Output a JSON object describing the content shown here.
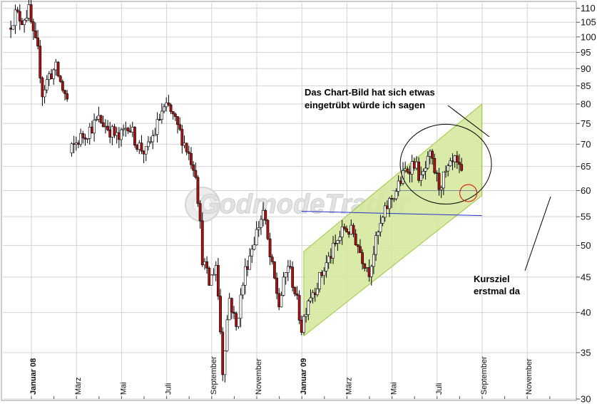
{
  "chart_data": {
    "type": "candlestick",
    "title": "",
    "xlabel": "",
    "ylabel": "",
    "y_scale": "log",
    "ylim": [
      30,
      112
    ],
    "grid": true,
    "watermark": "GodmodeTrader",
    "y_ticks": [
      110,
      105,
      100,
      95,
      90,
      85,
      80,
      75,
      70,
      65,
      60,
      55,
      50,
      45,
      40,
      35,
      30
    ],
    "x_ticks": [
      {
        "label": "Januar 08",
        "bold": true
      },
      {
        "label": "März",
        "bold": false
      },
      {
        "label": "Mai",
        "bold": false
      },
      {
        "label": "Juli",
        "bold": false
      },
      {
        "label": "September",
        "bold": false
      },
      {
        "label": "November",
        "bold": false
      },
      {
        "label": "Januar 09",
        "bold": true
      },
      {
        "label": "März",
        "bold": false
      },
      {
        "label": "Mai",
        "bold": false
      },
      {
        "label": "Juli",
        "bold": false
      },
      {
        "label": "September",
        "bold": false
      },
      {
        "label": "November",
        "bold": false
      }
    ],
    "price_path": [
      {
        "month": 0.0,
        "close": 103
      },
      {
        "month": 0.3,
        "close": 108
      },
      {
        "month": 0.6,
        "close": 106
      },
      {
        "month": 0.9,
        "close": 109
      },
      {
        "month": 1.1,
        "close": 100
      },
      {
        "month": 1.3,
        "close": 95
      },
      {
        "month": 1.5,
        "close": 83
      },
      {
        "month": 1.8,
        "close": 88
      },
      {
        "month": 2.1,
        "close": 90
      },
      {
        "month": 2.4,
        "close": 84
      },
      {
        "month": 2.6,
        "close": 81
      },
      {
        "month": 2.7,
        "close": 68
      },
      {
        "month": 3.1,
        "close": 71
      },
      {
        "month": 3.5,
        "close": 73
      },
      {
        "month": 4.0,
        "close": 76
      },
      {
        "month": 4.4,
        "close": 74
      },
      {
        "month": 4.9,
        "close": 71
      },
      {
        "month": 5.3,
        "close": 75
      },
      {
        "month": 5.7,
        "close": 70
      },
      {
        "month": 6.1,
        "close": 68
      },
      {
        "month": 6.5,
        "close": 73
      },
      {
        "month": 6.8,
        "close": 78
      },
      {
        "month": 7.1,
        "close": 79
      },
      {
        "month": 7.5,
        "close": 74
      },
      {
        "month": 7.9,
        "close": 69
      },
      {
        "month": 8.3,
        "close": 64
      },
      {
        "month": 8.6,
        "close": 48
      },
      {
        "month": 8.9,
        "close": 44
      },
      {
        "month": 9.2,
        "close": 47
      },
      {
        "month": 9.5,
        "close": 33
      },
      {
        "month": 9.8,
        "close": 42
      },
      {
        "month": 10.1,
        "close": 38
      },
      {
        "month": 10.5,
        "close": 46
      },
      {
        "month": 10.9,
        "close": 51
      },
      {
        "month": 11.3,
        "close": 56
      },
      {
        "month": 11.6,
        "close": 48
      },
      {
        "month": 12.0,
        "close": 41
      },
      {
        "month": 12.4,
        "close": 47
      },
      {
        "month": 12.7,
        "close": 43
      },
      {
        "month": 13.0,
        "close": 38
      },
      {
        "month": 13.3,
        "close": 42
      },
      {
        "month": 13.7,
        "close": 44
      },
      {
        "month": 14.1,
        "close": 47
      },
      {
        "month": 14.5,
        "close": 50
      },
      {
        "month": 14.9,
        "close": 53
      },
      {
        "month": 15.3,
        "close": 52
      },
      {
        "month": 15.7,
        "close": 48
      },
      {
        "month": 16.0,
        "close": 46
      },
      {
        "month": 16.4,
        "close": 52
      },
      {
        "month": 16.8,
        "close": 57
      },
      {
        "month": 17.2,
        "close": 60
      },
      {
        "month": 17.6,
        "close": 64
      },
      {
        "month": 18.0,
        "close": 66
      },
      {
        "month": 18.3,
        "close": 62
      },
      {
        "month": 18.7,
        "close": 67
      },
      {
        "month": 19.1,
        "close": 61
      },
      {
        "month": 19.5,
        "close": 64
      },
      {
        "month": 19.8,
        "close": 66
      },
      {
        "month": 20.1,
        "close": 63
      }
    ],
    "annotations": [
      {
        "text": "Das Chart-Bild hat sich etwas",
        "type": "note"
      },
      {
        "text": "eingetrübt würde ich sagen",
        "type": "note"
      },
      {
        "text": "Kursziel",
        "type": "note"
      },
      {
        "text": "erstmal da",
        "type": "note"
      }
    ],
    "overlays": {
      "channel": {
        "start_month": 13.1,
        "end_month": 21.0,
        "lower_start": 37,
        "lower_end": 59,
        "upper_start": 49,
        "upper_end": 80,
        "fill": "#d4e79a",
        "stroke": "#9bc83a"
      },
      "blue_line": {
        "start_month": 13.0,
        "end_month": 21.0,
        "start_value": 56,
        "end_value": 55.2,
        "color": "#2233cc"
      },
      "gray_line": {
        "start_month": 17.0,
        "end_month": 20.8,
        "value": 60
      },
      "big_circle": {
        "center_month": 19.4,
        "center_value": 65.5,
        "color": "#000000"
      },
      "small_circle": {
        "center_month": 20.4,
        "center_value": 59.5,
        "color": "#dd0000"
      }
    },
    "colors": {
      "up": "#ffffff",
      "down": "#aa1111",
      "wick": "#000000",
      "grid": "#d3d3d3",
      "frame": "#999999"
    }
  }
}
